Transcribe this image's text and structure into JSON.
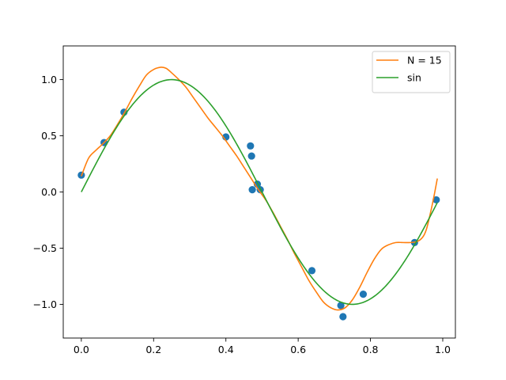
{
  "chart_data": {
    "type": "scatter",
    "title": "",
    "xlabel": "",
    "ylabel": "",
    "xlim": [
      -0.05,
      1.035
    ],
    "ylim": [
      -1.3,
      1.3
    ],
    "x_ticks": [
      0.0,
      0.2,
      0.4,
      0.6,
      0.8,
      1.0
    ],
    "x_tick_labels": [
      "0.0",
      "0.2",
      "0.4",
      "0.6",
      "0.8",
      "1.0"
    ],
    "y_ticks": [
      -1.0,
      -0.5,
      0.0,
      0.5,
      1.0
    ],
    "y_tick_labels": [
      "−1.0",
      "−0.5",
      "0.0",
      "0.5",
      "1.0"
    ],
    "grid": false,
    "legend_position": "upper right",
    "series": [
      {
        "name": "N = 15",
        "type": "line",
        "color": "#ff7f0e",
        "x": [
          0.0,
          0.02,
          0.04,
          0.06,
          0.08,
          0.1,
          0.12,
          0.14,
          0.16,
          0.18,
          0.2,
          0.22,
          0.235,
          0.25,
          0.27,
          0.29,
          0.31,
          0.33,
          0.35,
          0.37,
          0.39,
          0.41,
          0.43,
          0.45,
          0.47,
          0.49,
          0.51,
          0.53,
          0.55,
          0.57,
          0.59,
          0.61,
          0.63,
          0.65,
          0.67,
          0.69,
          0.71,
          0.73,
          0.75,
          0.77,
          0.79,
          0.81,
          0.83,
          0.85,
          0.87,
          0.89,
          0.91,
          0.93,
          0.945,
          0.955,
          0.965,
          0.975,
          0.985
        ],
        "y": [
          0.14,
          0.3,
          0.37,
          0.43,
          0.5,
          0.6,
          0.71,
          0.83,
          0.94,
          1.04,
          1.09,
          1.11,
          1.1,
          1.06,
          1.0,
          0.93,
          0.84,
          0.75,
          0.66,
          0.58,
          0.5,
          0.41,
          0.32,
          0.22,
          0.12,
          0.02,
          -0.07,
          -0.18,
          -0.3,
          -0.42,
          -0.55,
          -0.67,
          -0.79,
          -0.89,
          -0.98,
          -1.03,
          -1.05,
          -1.03,
          -0.96,
          -0.85,
          -0.72,
          -0.6,
          -0.51,
          -0.47,
          -0.45,
          -0.45,
          -0.45,
          -0.44,
          -0.4,
          -0.33,
          -0.2,
          -0.05,
          0.12
        ]
      },
      {
        "name": "sin",
        "type": "line",
        "color": "#2ca02c",
        "function": "sin(2*pi*x)",
        "x_range": [
          0.0,
          0.985
        ]
      },
      {
        "name": "",
        "type": "scatter",
        "color": "#1f77b4",
        "x": [
          0.0,
          0.063,
          0.118,
          0.4,
          0.468,
          0.471,
          0.473,
          0.487,
          0.495,
          0.638,
          0.718,
          0.724,
          0.78,
          0.922,
          0.982
        ],
        "y": [
          0.15,
          0.44,
          0.71,
          0.49,
          0.41,
          0.32,
          0.02,
          0.07,
          0.02,
          -0.7,
          -1.01,
          -1.11,
          -0.91,
          -0.45,
          -0.07
        ]
      }
    ]
  }
}
